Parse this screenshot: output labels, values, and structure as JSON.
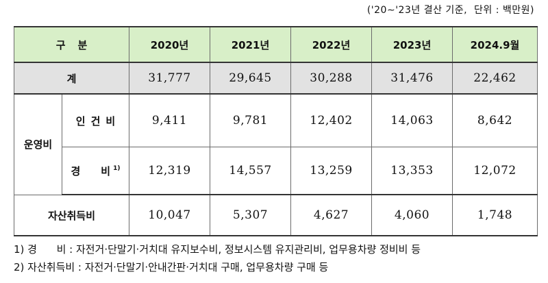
{
  "unit_note": "('20∼'23년 결산 기준,  단위 : 백만원)",
  "table": {
    "header": {
      "division": "구분",
      "years": [
        "2020년",
        "2021년",
        "2022년",
        "2023년",
        "2024.9월"
      ]
    },
    "total": {
      "label": "계",
      "values": [
        "31,777",
        "29,645",
        "30,288",
        "31,476",
        "22,462"
      ]
    },
    "operating": {
      "group_label": "운영비",
      "personnel": {
        "label": "인건비",
        "values": [
          "9,411",
          "9,781",
          "12,402",
          "14,063",
          "8,642"
        ]
      },
      "expenses": {
        "label": "경비",
        "footnote_mark": "1)",
        "values": [
          "12,319",
          "14,557",
          "13,259",
          "13,353",
          "12,072"
        ]
      }
    },
    "asset": {
      "label": "자산취득비",
      "values": [
        "10,047",
        "5,307",
        "4,627",
        "4,060",
        "1,748"
      ]
    }
  },
  "footnotes": [
    "1) 경      비 : 자전거·단말기·거치대 유지보수비, 정보시스템 유지관리비, 업무용차량 정비비 등",
    "2) 자산취득비 : 자전거·단말기·안내간판·거치대 구매, 업무용차량 구매 등"
  ]
}
